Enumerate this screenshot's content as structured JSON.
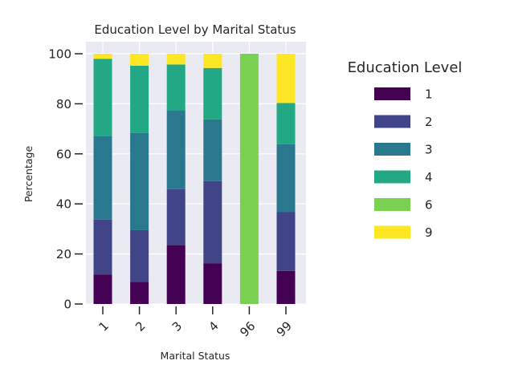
{
  "chart_data": {
    "type": "bar",
    "stacked": true,
    "title": "Education Level by Marital Status",
    "xlabel": "Marital Status",
    "ylabel": "Percentage",
    "ylim": [
      0,
      100
    ],
    "yticks": [
      0,
      20,
      40,
      60,
      80,
      100
    ],
    "categories": [
      "1",
      "2",
      "3",
      "4",
      "96",
      "99"
    ],
    "legend": {
      "title": "Education Level",
      "placement": "right"
    },
    "grid": true,
    "series": [
      {
        "name": "1",
        "color": "#440154",
        "values": [
          11.8,
          8.9,
          23.4,
          16.3,
          0,
          13.2
        ]
      },
      {
        "name": "2",
        "color": "#414487",
        "values": [
          21.9,
          20.6,
          22.5,
          32.8,
          0,
          23.5
        ]
      },
      {
        "name": "3",
        "color": "#2a788e",
        "values": [
          33.3,
          38.8,
          31.6,
          24.7,
          0,
          27.1
        ]
      },
      {
        "name": "4",
        "color": "#22a884",
        "values": [
          31.0,
          26.9,
          18.2,
          20.5,
          0,
          16.5
        ]
      },
      {
        "name": "6",
        "color": "#7ad151",
        "values": [
          0,
          0,
          0,
          0,
          100.0,
          0
        ]
      },
      {
        "name": "9",
        "color": "#fde725",
        "values": [
          2.0,
          4.8,
          4.3,
          5.7,
          0,
          19.7
        ]
      }
    ]
  }
}
